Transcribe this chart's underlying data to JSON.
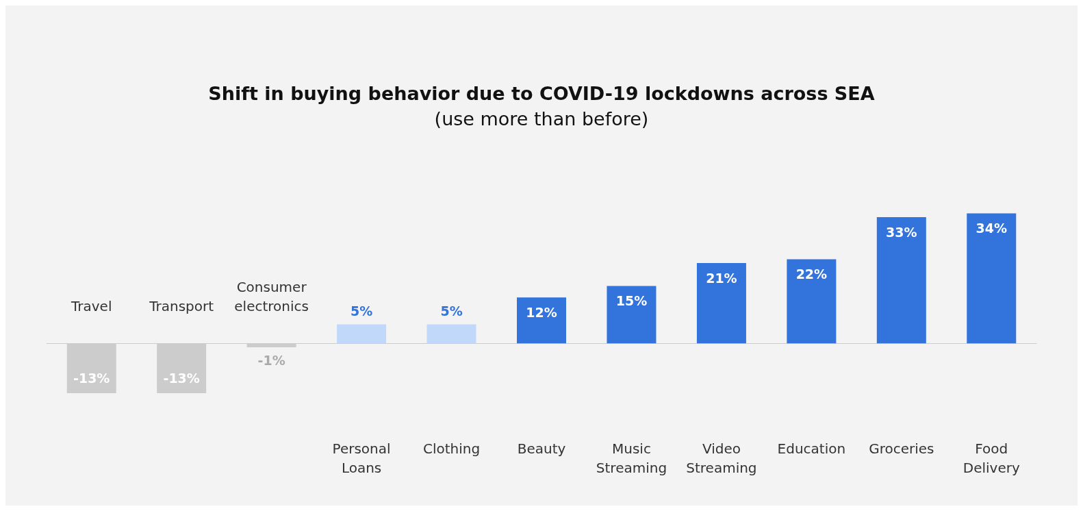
{
  "chart_data": {
    "type": "bar",
    "title": "Shift in buying behavior due to COVID-19 lockdowns across SEA",
    "subtitle": "(use more than before)",
    "categories": [
      "Travel",
      "Transport",
      "Consumer\nelectronics",
      "Personal\nLoans",
      "Clothing",
      "Beauty",
      "Music\nStreaming",
      "Video\nStreaming",
      "Education",
      "Groceries",
      "Food\nDelivery"
    ],
    "values": [
      -13,
      -13,
      -1,
      5,
      5,
      12,
      15,
      21,
      22,
      33,
      34
    ],
    "colors": [
      "#cccccc",
      "#cccccc",
      "#cccccc",
      "#c2d8fb",
      "#c2d8fb",
      "#3273dc",
      "#3273dc",
      "#3273dc",
      "#3273dc",
      "#3273dc",
      "#3273dc"
    ],
    "value_labels": [
      "-13%",
      "-13%",
      "-1%",
      "5%",
      "5%",
      "12%",
      "15%",
      "21%",
      "22%",
      "33%",
      "34%"
    ]
  }
}
